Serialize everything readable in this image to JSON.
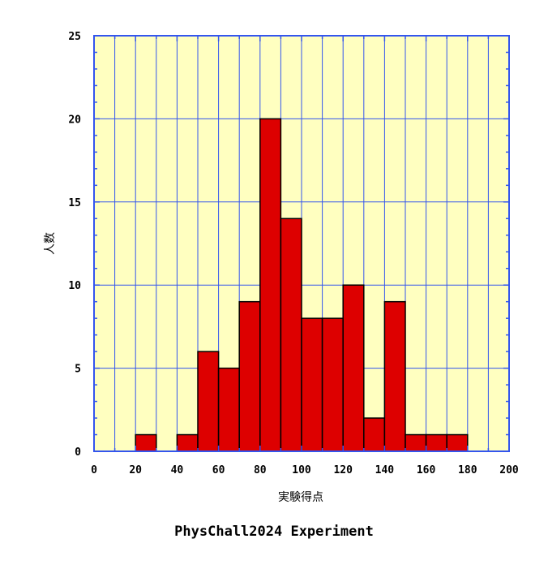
{
  "chart_data": {
    "type": "bar",
    "subtype": "histogram",
    "xlabel": "実験得点",
    "ylabel": "人数",
    "xlim": [
      0,
      200
    ],
    "ylim": [
      0,
      25
    ],
    "x_ticks": [
      0,
      20,
      40,
      60,
      80,
      100,
      120,
      140,
      160,
      180,
      200
    ],
    "y_ticks": [
      0,
      5,
      10,
      15,
      20,
      25
    ],
    "x_minor_step": 10,
    "y_minor_step": 1,
    "bin_width": 10,
    "bins": [
      {
        "start": 20,
        "end": 30,
        "count": 1
      },
      {
        "start": 40,
        "end": 50,
        "count": 1
      },
      {
        "start": 50,
        "end": 60,
        "count": 6
      },
      {
        "start": 60,
        "end": 70,
        "count": 5
      },
      {
        "start": 70,
        "end": 80,
        "count": 9
      },
      {
        "start": 80,
        "end": 90,
        "count": 20
      },
      {
        "start": 90,
        "end": 100,
        "count": 14
      },
      {
        "start": 100,
        "end": 110,
        "count": 8
      },
      {
        "start": 110,
        "end": 120,
        "count": 8
      },
      {
        "start": 120,
        "end": 130,
        "count": 10
      },
      {
        "start": 130,
        "end": 140,
        "count": 2
      },
      {
        "start": 140,
        "end": 150,
        "count": 9
      },
      {
        "start": 150,
        "end": 160,
        "count": 1
      },
      {
        "start": 160,
        "end": 170,
        "count": 1
      },
      {
        "start": 170,
        "end": 180,
        "count": 1
      }
    ],
    "grid": true,
    "colors": {
      "plot_background": "#ffffc0",
      "grid": "#3355ee",
      "bar_fill": "#dd0000",
      "bar_edge": "#000000",
      "frame": "#3355ee"
    }
  },
  "caption": "PhysChall2024 Experiment"
}
